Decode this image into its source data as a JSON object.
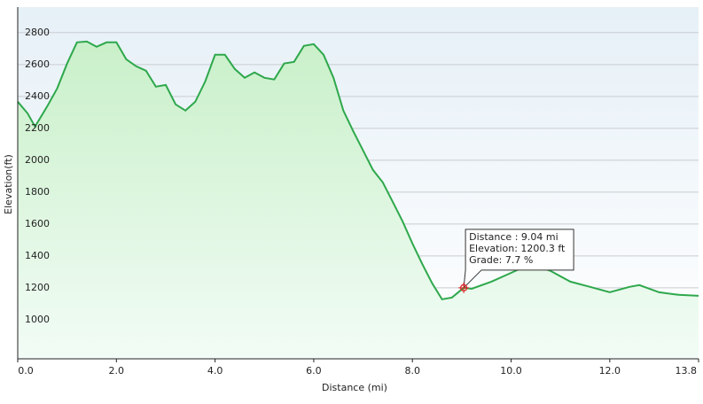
{
  "chart_data": {
    "type": "area",
    "x_label": "Distance  (mi)",
    "y_label": "Elevation(ft)",
    "x": [
      0,
      0.2,
      0.35,
      0.6,
      0.8,
      1.0,
      1.2,
      1.4,
      1.6,
      1.8,
      2.0,
      2.2,
      2.4,
      2.6,
      2.8,
      3.0,
      3.2,
      3.4,
      3.6,
      3.8,
      4.0,
      4.2,
      4.4,
      4.6,
      4.8,
      5.0,
      5.2,
      5.4,
      5.6,
      5.8,
      6.0,
      6.2,
      6.4,
      6.6,
      6.8,
      7.0,
      7.2,
      7.4,
      7.6,
      7.8,
      8.0,
      8.2,
      8.4,
      8.6,
      8.8,
      9.04,
      9.2,
      9.6,
      10.0,
      10.4,
      10.8,
      11.2,
      11.6,
      12.0,
      12.4,
      12.6,
      13.0,
      13.4,
      13.8
    ],
    "series": [
      {
        "color": "#2ea84c",
        "values": [
          2367,
          2294,
          2211,
          2339,
          2450,
          2606,
          2739,
          2744,
          2711,
          2739,
          2739,
          2633,
          2589,
          2561,
          2461,
          2472,
          2350,
          2311,
          2367,
          2494,
          2661,
          2661,
          2572,
          2517,
          2550,
          2517,
          2506,
          2606,
          2617,
          2717,
          2728,
          2661,
          2517,
          2311,
          2183,
          2061,
          1939,
          1861,
          1739,
          1617,
          1478,
          1350,
          1228,
          1128,
          1139,
          1200.3,
          1194,
          1239,
          1294,
          1350,
          1306,
          1239,
          1206,
          1172,
          1206,
          1217,
          1172,
          1156,
          1150
        ]
      }
    ],
    "xlim": [
      0,
      13.8
    ],
    "ylim": [
      755,
      2960
    ],
    "xticks": [
      {
        "value": 0,
        "label": "0.0"
      },
      {
        "value": 2,
        "label": "2.0"
      },
      {
        "value": 4,
        "label": "4.0"
      },
      {
        "value": 6,
        "label": "6.0"
      },
      {
        "value": 8,
        "label": "8.0"
      },
      {
        "value": 10,
        "label": "10.0"
      },
      {
        "value": 12,
        "label": "12.0"
      },
      {
        "value": 13.8,
        "label": "13.8"
      }
    ],
    "yticks": [
      1000,
      1200,
      1400,
      1600,
      1800,
      2000,
      2200,
      2400,
      2600,
      2800
    ],
    "grid": true,
    "annotation": {
      "x": 9.04,
      "y": 1200.3,
      "lines": [
        "Distance : 9.04 mi",
        "Elevation: 1200.3 ft",
        "Grade: 7.7 %"
      ]
    }
  }
}
